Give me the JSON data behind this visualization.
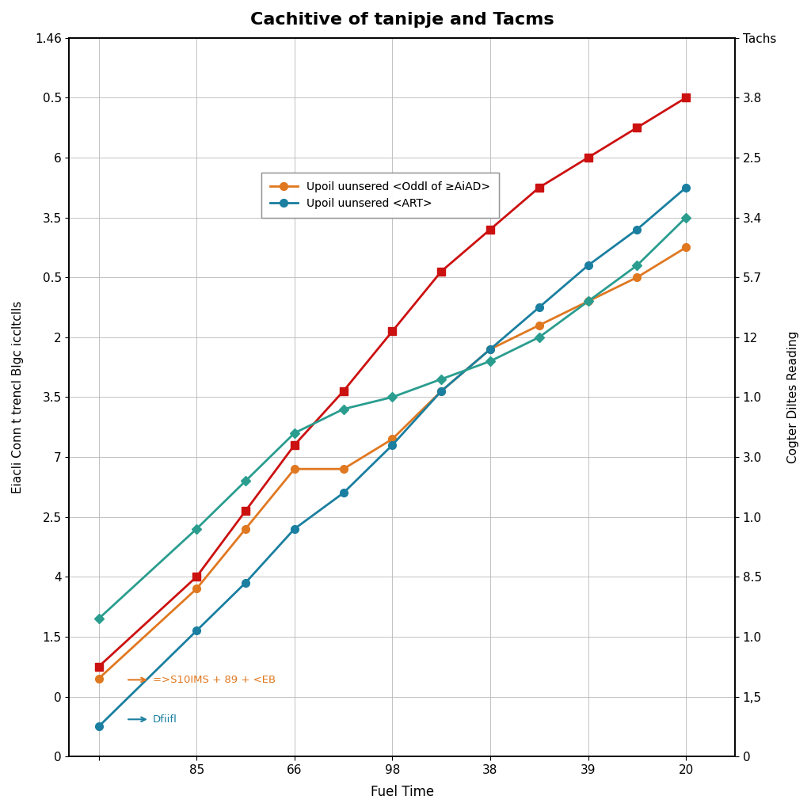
{
  "title": "Cachitive of tanipje and Tacms",
  "xlabel": "Fuel Time",
  "ylabel_left": "Eiacli Conn t trencl Blgc iccltclls",
  "ylabel_right": "Cogter Diltes Reading",
  "right_axis_label_top": "Tachs",
  "x_tick_positions": [
    0,
    1,
    2,
    3,
    4,
    5,
    6
  ],
  "x_tick_labels": [
    "",
    "85",
    "66",
    "98",
    "38",
    "39",
    "20"
  ],
  "y_left_tick_labels": [
    "0",
    "0",
    "1.5",
    "4",
    "2.5",
    "7",
    "3.5",
    "2",
    "0.5",
    "3.5",
    "6",
    "0.5",
    "1.46"
  ],
  "y_right_tick_labels": [
    "0",
    "1,5",
    "1.0",
    "8.5",
    "1.0",
    "3.0",
    "1.0",
    "12",
    "5.7",
    "3.4",
    "2.5",
    "3.8",
    "Tachs"
  ],
  "orange_x": [
    0,
    1,
    1.5,
    2,
    2.5,
    3,
    3.5,
    4,
    4.5,
    5,
    5.5,
    6
  ],
  "orange_y": [
    0.05,
    0.2,
    0.3,
    0.4,
    0.4,
    0.45,
    0.53,
    0.6,
    0.64,
    0.68,
    0.72,
    0.77
  ],
  "blue_x": [
    0,
    1,
    1.5,
    2,
    2.5,
    3,
    3.5,
    4,
    4.5,
    5,
    5.5,
    6
  ],
  "blue_y": [
    -0.03,
    0.13,
    0.21,
    0.3,
    0.36,
    0.44,
    0.53,
    0.6,
    0.67,
    0.74,
    0.8,
    0.87
  ],
  "red_x": [
    0,
    1,
    1.5,
    2,
    2.5,
    3,
    3.5,
    4,
    4.5,
    5,
    5.5,
    6
  ],
  "red_y": [
    0.07,
    0.22,
    0.33,
    0.44,
    0.53,
    0.63,
    0.73,
    0.8,
    0.87,
    0.92,
    0.97,
    1.02
  ],
  "teal_x": [
    0,
    1,
    1.5,
    2,
    2.5,
    3,
    3.5,
    4,
    4.5,
    5,
    5.5,
    6
  ],
  "teal_y": [
    0.15,
    0.3,
    0.38,
    0.46,
    0.5,
    0.52,
    0.55,
    0.58,
    0.62,
    0.68,
    0.74,
    0.82
  ],
  "orange_color": "#e07820",
  "blue_color": "#1a7fa0",
  "red_color": "#cc1111",
  "teal_color": "#2a9d8f",
  "legend_orange_label": "Upoil uunsered <Oddl of ≥AiAD>",
  "legend_blue_label": "Upoil uunsered <ART>",
  "annot_orange_label": "=>S10IMS + 89 + <EB",
  "annot_blue_label": "Dfiifl",
  "background_color": "#ffffff",
  "grid_color": "#bbbbbb",
  "figsize": [
    10.24,
    10.24
  ],
  "dpi": 100
}
